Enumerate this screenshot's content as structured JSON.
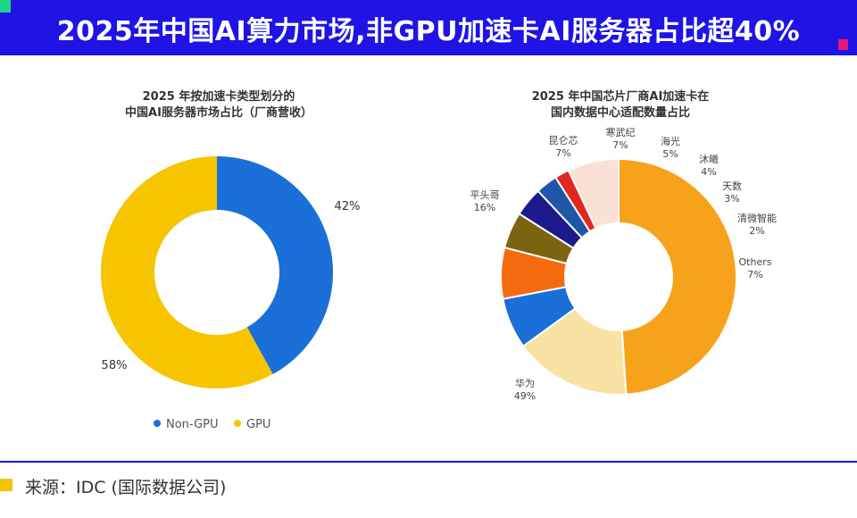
{
  "header": {
    "title": "2025年中国AI算力市场,非GPU加速卡AI服务器占比超40%"
  },
  "colors": {
    "header_bg": "#1f13e6",
    "accent_green": "#1fd58a",
    "accent_pink": "#e6177a",
    "footer_mark": "#f5c400"
  },
  "chart_data": [
    {
      "type": "pie",
      "donut": true,
      "title_line1": "2025 年按加速卡类型划分的",
      "title_line2": "中国AI服务器市场占比（厂商营收）",
      "unit": "%",
      "legend_position": "bottom",
      "series": [
        {
          "name": "Non-GPU",
          "value": 42,
          "label": "42%",
          "color": "#1a6fd8"
        },
        {
          "name": "GPU",
          "value": 58,
          "label": "58%",
          "color": "#f7c400"
        }
      ]
    },
    {
      "type": "pie",
      "donut": true,
      "title_line1": "2025 年中国芯片厂商AI加速卡在",
      "title_line2": "国内数据中心适配数量占比",
      "unit": "%",
      "series": [
        {
          "name": "华为",
          "value": 49,
          "label": "49%",
          "color": "#f7a21b"
        },
        {
          "name": "平头哥",
          "value": 16,
          "label": "16%",
          "color": "#f8e3a4"
        },
        {
          "name": "昆仑芯",
          "value": 7,
          "label": "7%",
          "color": "#1a6fd8"
        },
        {
          "name": "寒武纪",
          "value": 7,
          "label": "7%",
          "color": "#f56a0f"
        },
        {
          "name": "海光",
          "value": 5,
          "label": "5%",
          "color": "#7a6410"
        },
        {
          "name": "沐曦",
          "value": 4,
          "label": "4%",
          "color": "#1c1a8c"
        },
        {
          "name": "天数",
          "value": 3,
          "label": "3%",
          "color": "#1e56a8"
        },
        {
          "name": "清微智能",
          "value": 2,
          "label": "2%",
          "color": "#e02820"
        },
        {
          "name": "Others",
          "value": 7,
          "label": "7%",
          "color": "#fbe0d6"
        }
      ]
    }
  ],
  "footer": {
    "source": "来源：IDC (国际数据公司)"
  }
}
